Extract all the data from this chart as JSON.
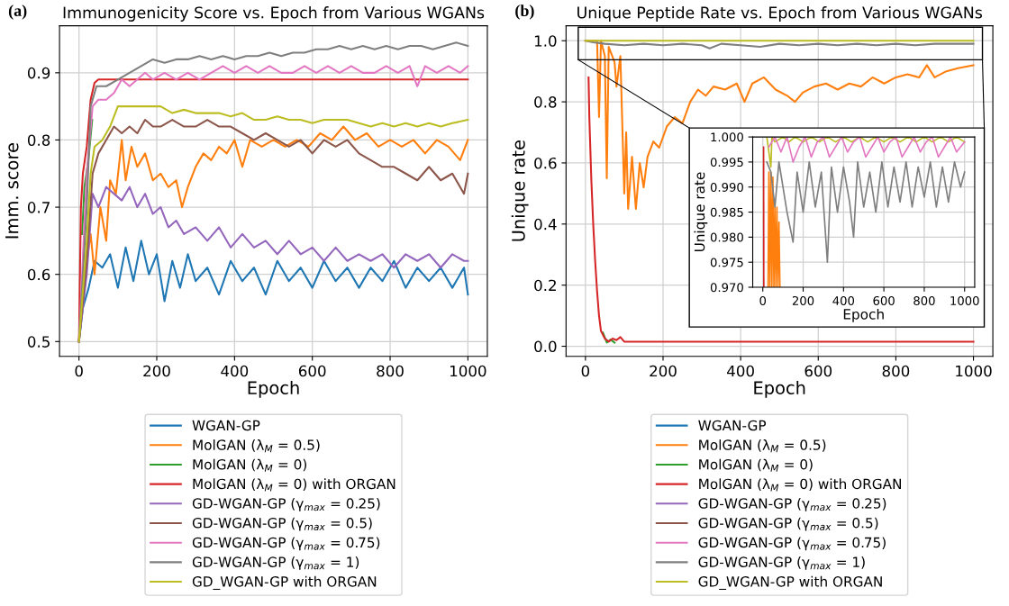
{
  "chart_data": [
    {
      "type": "line",
      "title": "Immunogenicity Score vs. Epoch from Various WGANs",
      "xlabel": "Epoch",
      "ylabel": "Imm. score",
      "annotations": [
        "(a)"
      ],
      "xlim": [
        -50,
        1050
      ],
      "ylim": [
        0.478,
        0.97
      ],
      "xticks": [
        0,
        200,
        400,
        600,
        800,
        1000
      ],
      "yticks": [
        0.5,
        0.6,
        0.7,
        0.8,
        0.9
      ],
      "grid": true,
      "legend": "bottom",
      "marker": "none",
      "line_style": "solid",
      "series": [
        {
          "name": "WGAN-GP",
          "color": "#1f77b4",
          "x": [
            0,
            10,
            25,
            40,
            60,
            80,
            100,
            120,
            140,
            160,
            180,
            200,
            220,
            240,
            260,
            280,
            300,
            330,
            360,
            390,
            420,
            450,
            480,
            510,
            540,
            570,
            600,
            630,
            660,
            690,
            720,
            750,
            780,
            810,
            840,
            870,
            900,
            930,
            960,
            990,
            1000
          ],
          "values": [
            0.5,
            0.55,
            0.58,
            0.62,
            0.61,
            0.63,
            0.58,
            0.64,
            0.59,
            0.65,
            0.6,
            0.63,
            0.56,
            0.62,
            0.58,
            0.63,
            0.59,
            0.61,
            0.57,
            0.62,
            0.59,
            0.61,
            0.57,
            0.62,
            0.59,
            0.61,
            0.58,
            0.62,
            0.59,
            0.61,
            0.58,
            0.61,
            0.59,
            0.62,
            0.58,
            0.61,
            0.59,
            0.61,
            0.58,
            0.61,
            0.57
          ]
        },
        {
          "name": "MolGAN (λ$_{M}$ = 0.5)",
          "color": "#ff7f0e",
          "x": [
            0,
            20,
            30,
            40,
            55,
            70,
            80,
            95,
            110,
            120,
            135,
            150,
            170,
            190,
            210,
            230,
            250,
            265,
            280,
            300,
            320,
            340,
            360,
            380,
            400,
            420,
            440,
            470,
            500,
            530,
            560,
            590,
            620,
            650,
            680,
            710,
            740,
            770,
            800,
            830,
            860,
            890,
            920,
            950,
            980,
            1000
          ],
          "values": [
            0.5,
            0.62,
            0.66,
            0.6,
            0.7,
            0.65,
            0.74,
            0.72,
            0.8,
            0.74,
            0.79,
            0.76,
            0.78,
            0.74,
            0.75,
            0.73,
            0.74,
            0.7,
            0.73,
            0.76,
            0.78,
            0.77,
            0.79,
            0.78,
            0.8,
            0.76,
            0.8,
            0.79,
            0.8,
            0.79,
            0.8,
            0.79,
            0.81,
            0.8,
            0.82,
            0.8,
            0.81,
            0.79,
            0.8,
            0.79,
            0.8,
            0.78,
            0.8,
            0.79,
            0.77,
            0.8
          ]
        },
        {
          "name": "MolGAN (λ$_{M}$ = 0)",
          "color": "#2ca02c",
          "x": [
            8,
            14,
            24,
            34
          ],
          "values": [
            0.66,
            0.73,
            0.77,
            0.83
          ]
        },
        {
          "name": "MolGAN (λ$_{M}$ = 0) with ORGAN",
          "color": "#d62728",
          "x": [
            0,
            5,
            10,
            20,
            30,
            40,
            50,
            200,
            400,
            600,
            800,
            1000
          ],
          "values": [
            0.5,
            0.7,
            0.75,
            0.79,
            0.86,
            0.885,
            0.89,
            0.89,
            0.89,
            0.89,
            0.89,
            0.89
          ]
        },
        {
          "name": "GD-WGAN-GP (γ$_{max}$ = 0.25)",
          "color": "#9467bd",
          "x": [
            0,
            20,
            35,
            50,
            70,
            90,
            110,
            130,
            150,
            170,
            190,
            210,
            230,
            250,
            270,
            300,
            330,
            360,
            390,
            420,
            450,
            480,
            510,
            540,
            570,
            600,
            630,
            660,
            690,
            720,
            750,
            780,
            810,
            840,
            870,
            900,
            930,
            960,
            990,
            1000
          ],
          "values": [
            0.5,
            0.6,
            0.72,
            0.7,
            0.73,
            0.72,
            0.71,
            0.73,
            0.7,
            0.72,
            0.69,
            0.7,
            0.67,
            0.68,
            0.66,
            0.67,
            0.65,
            0.67,
            0.64,
            0.66,
            0.64,
            0.65,
            0.63,
            0.65,
            0.63,
            0.64,
            0.62,
            0.64,
            0.62,
            0.63,
            0.62,
            0.63,
            0.61,
            0.63,
            0.62,
            0.63,
            0.61,
            0.63,
            0.62,
            0.62
          ]
        },
        {
          "name": "GD-WGAN-GP (γ$_{max}$ = 0.5)",
          "color": "#8c564b",
          "x": [
            0,
            20,
            35,
            50,
            70,
            90,
            110,
            130,
            150,
            170,
            190,
            210,
            240,
            270,
            300,
            330,
            360,
            390,
            420,
            450,
            480,
            510,
            540,
            570,
            600,
            630,
            660,
            690,
            720,
            750,
            780,
            810,
            840,
            870,
            900,
            930,
            960,
            990,
            1000
          ],
          "values": [
            0.5,
            0.62,
            0.75,
            0.78,
            0.8,
            0.82,
            0.81,
            0.82,
            0.81,
            0.83,
            0.82,
            0.82,
            0.83,
            0.82,
            0.82,
            0.83,
            0.82,
            0.82,
            0.81,
            0.8,
            0.81,
            0.8,
            0.79,
            0.8,
            0.78,
            0.8,
            0.79,
            0.8,
            0.78,
            0.77,
            0.76,
            0.76,
            0.75,
            0.74,
            0.76,
            0.74,
            0.75,
            0.72,
            0.75
          ]
        },
        {
          "name": "GD-WGAN-GP (γ$_{max}$ = 0.75)",
          "color": "#e377c2",
          "x": [
            0,
            20,
            35,
            50,
            70,
            90,
            110,
            130,
            150,
            170,
            190,
            220,
            250,
            280,
            310,
            340,
            370,
            400,
            430,
            460,
            490,
            520,
            550,
            580,
            610,
            640,
            670,
            700,
            730,
            760,
            790,
            820,
            850,
            870,
            890,
            920,
            950,
            980,
            1000
          ],
          "values": [
            0.5,
            0.75,
            0.85,
            0.86,
            0.86,
            0.87,
            0.89,
            0.88,
            0.89,
            0.9,
            0.89,
            0.9,
            0.89,
            0.9,
            0.89,
            0.9,
            0.91,
            0.9,
            0.91,
            0.9,
            0.91,
            0.9,
            0.9,
            0.91,
            0.9,
            0.91,
            0.9,
            0.91,
            0.9,
            0.9,
            0.91,
            0.9,
            0.91,
            0.88,
            0.91,
            0.9,
            0.91,
            0.9,
            0.91
          ]
        },
        {
          "name": "GD-WGAN-GP (γ$_{max}$ = 1)",
          "color": "#7f7f7f",
          "x": [
            0,
            20,
            30,
            45,
            70,
            100,
            130,
            160,
            190,
            220,
            250,
            280,
            310,
            340,
            370,
            400,
            430,
            460,
            490,
            520,
            550,
            580,
            610,
            640,
            670,
            700,
            730,
            760,
            790,
            820,
            850,
            880,
            910,
            940,
            970,
            1000
          ],
          "values": [
            0.5,
            0.7,
            0.85,
            0.88,
            0.88,
            0.89,
            0.9,
            0.91,
            0.92,
            0.915,
            0.92,
            0.92,
            0.925,
            0.92,
            0.925,
            0.92,
            0.925,
            0.925,
            0.93,
            0.925,
            0.93,
            0.93,
            0.935,
            0.935,
            0.94,
            0.935,
            0.94,
            0.935,
            0.94,
            0.935,
            0.94,
            0.94,
            0.935,
            0.94,
            0.945,
            0.94
          ]
        },
        {
          "name": "GD_WGAN-GP with ORGAN",
          "color": "#bcbd22",
          "x": [
            0,
            20,
            30,
            40,
            60,
            80,
            100,
            120,
            150,
            180,
            210,
            240,
            270,
            300,
            330,
            360,
            390,
            420,
            450,
            480,
            510,
            540,
            570,
            600,
            630,
            660,
            690,
            720,
            750,
            780,
            810,
            840,
            870,
            900,
            930,
            960,
            1000
          ],
          "values": [
            0.5,
            0.65,
            0.75,
            0.79,
            0.8,
            0.82,
            0.85,
            0.85,
            0.85,
            0.85,
            0.85,
            0.84,
            0.845,
            0.84,
            0.84,
            0.84,
            0.835,
            0.84,
            0.83,
            0.83,
            0.835,
            0.83,
            0.83,
            0.825,
            0.83,
            0.83,
            0.83,
            0.825,
            0.82,
            0.825,
            0.82,
            0.825,
            0.82,
            0.825,
            0.82,
            0.825,
            0.83
          ]
        }
      ]
    },
    {
      "type": "line",
      "title": "Unique Peptide Rate vs. Epoch from Various WGANs",
      "xlabel": "Epoch",
      "ylabel": "Unique rate",
      "annotations": [
        "(b)"
      ],
      "xlim": [
        -50,
        1050
      ],
      "ylim": [
        -0.033,
        1.049
      ],
      "xticks": [
        0,
        200,
        400,
        600,
        800,
        1000
      ],
      "yticks": [
        {
          "value": 0,
          "label": "0.0"
        },
        0.2,
        0.4,
        0.6,
        0.8,
        {
          "value": 1,
          "label": "1.0"
        }
      ],
      "grid": true,
      "legend": "bottom",
      "marker": "none",
      "line_style": "solid",
      "series": [
        {
          "name": "WGAN-GP",
          "color": "#1f77b4"
        },
        {
          "name": "MolGAN (λ$_{M}$ = 0.5)",
          "color": "#ff7f0e",
          "x": [
            0,
            30,
            35,
            40,
            50,
            55,
            60,
            75,
            80,
            90,
            100,
            105,
            110,
            120,
            130,
            140,
            150,
            160,
            175,
            190,
            210,
            230,
            250,
            270,
            290,
            310,
            330,
            360,
            390,
            410,
            430,
            460,
            490,
            520,
            540,
            560,
            590,
            620,
            650,
            680,
            710,
            740,
            770,
            800,
            830,
            860,
            880,
            900,
            930,
            960,
            1000
          ],
          "values": [
            1.0,
            1.0,
            0.75,
            1.0,
            0.95,
            0.55,
            0.98,
            0.93,
            0.85,
            0.95,
            0.5,
            0.7,
            0.45,
            0.62,
            0.45,
            0.6,
            0.52,
            0.62,
            0.67,
            0.65,
            0.72,
            0.75,
            0.73,
            0.8,
            0.84,
            0.82,
            0.85,
            0.84,
            0.86,
            0.8,
            0.86,
            0.88,
            0.84,
            0.82,
            0.8,
            0.83,
            0.85,
            0.86,
            0.84,
            0.86,
            0.85,
            0.88,
            0.86,
            0.88,
            0.89,
            0.88,
            0.92,
            0.88,
            0.9,
            0.91,
            0.92
          ]
        },
        {
          "name": "MolGAN (λ$_{M}$ = 0)",
          "color": "#2ca02c",
          "x": [
            45,
            55,
            65,
            75
          ],
          "values": [
            0.045,
            0.012,
            0.022,
            0.012
          ]
        },
        {
          "name": "MolGAN (λ$_{M}$ = 0) with ORGAN",
          "color": "#d62728",
          "x": [
            8,
            10,
            15,
            20,
            25,
            30,
            35,
            40,
            50,
            60,
            70,
            80,
            90,
            100,
            150,
            250,
            500,
            1000
          ],
          "values": [
            0.88,
            0.75,
            0.55,
            0.4,
            0.28,
            0.18,
            0.1,
            0.05,
            0.025,
            0.015,
            0.025,
            0.02,
            0.03,
            0.015,
            0.015,
            0.015,
            0.015,
            0.015
          ]
        },
        {
          "name": "GD-WGAN-GP (γ$_{max}$ = 0.25)",
          "color": "#9467bd"
        },
        {
          "name": "GD-WGAN-GP (γ$_{max}$ = 0.5)",
          "color": "#8c564b"
        },
        {
          "name": "GD-WGAN-GP (γ$_{max}$ = 0.75)",
          "color": "#e377c2"
        },
        {
          "name": "GD-WGAN-GP (γ$_{max}$ = 1)",
          "color": "#7f7f7f",
          "x": [
            0,
            20,
            50,
            100,
            150,
            200,
            250,
            300,
            320,
            350,
            400,
            450,
            500,
            550,
            600,
            650,
            700,
            750,
            800,
            850,
            900,
            950,
            1000
          ],
          "values": [
            1.0,
            0.995,
            0.99,
            0.985,
            0.99,
            0.985,
            0.99,
            0.985,
            0.975,
            0.99,
            0.985,
            0.98,
            0.99,
            0.985,
            0.99,
            0.985,
            0.99,
            0.985,
            0.99,
            0.985,
            0.99,
            0.99,
            0.99
          ]
        },
        {
          "name": "GD_WGAN-GP with ORGAN",
          "color": "#bcbd22",
          "x": [
            0,
            500,
            1000
          ],
          "values": [
            1.0,
            1.0,
            1.0
          ]
        }
      ]
    },
    {
      "type": "line",
      "xlabel": "Epoch",
      "ylabel": "Unique rate",
      "xlim": [
        -50,
        1050
      ],
      "ylim": [
        0.97,
        1.0
      ],
      "xticks": [
        0,
        200,
        400,
        600,
        800,
        1000
      ],
      "yticks": [
        {
          "value": 0.97,
          "label": "0.970"
        },
        {
          "value": 0.975,
          "label": "0.975"
        },
        {
          "value": 0.98,
          "label": "0.980"
        },
        {
          "value": 0.985,
          "label": "0.985"
        },
        {
          "value": 0.99,
          "label": "0.990"
        },
        {
          "value": 0.995,
          "label": "0.995"
        },
        {
          "value": 1.0,
          "label": "1.000"
        }
      ],
      "grid": true,
      "marker": "none",
      "line_style": "solid",
      "series": [
        {
          "color": "#d62728",
          "x": [
            4,
            5
          ],
          "values": [
            0.998,
            0.97
          ]
        },
        {
          "color": "#ff7f0e",
          "x": [
            26,
            30,
            35,
            40,
            45,
            50,
            55,
            60,
            65,
            70,
            75,
            80,
            85
          ],
          "values": [
            0.97,
            0.993,
            0.97,
            0.993,
            0.97,
            0.992,
            0.97,
            0.986,
            0.97,
            0.986,
            0.97,
            0.983,
            0.97
          ]
        },
        {
          "color": "#bcbd22",
          "x": [
            20,
            40,
            45,
            60,
            100,
            130,
            160,
            200,
            240,
            280,
            320,
            360,
            400,
            440,
            480,
            520,
            560,
            600,
            640,
            680,
            720,
            760,
            800,
            840,
            880,
            920,
            960,
            1000
          ],
          "values": [
            1.0,
            0.994,
            1.0,
            0.999,
            1.0,
            0.999,
            1.0,
            0.999,
            1.0,
            0.999,
            1.0,
            0.999,
            1.0,
            0.999,
            1.0,
            0.999,
            1.0,
            0.999,
            1.0,
            0.999,
            1.0,
            0.999,
            1.0,
            0.999,
            1.0,
            0.999,
            1.0,
            0.999
          ]
        },
        {
          "color": "#e377c2",
          "x": [
            30,
            60,
            90,
            120,
            150,
            180,
            210,
            240,
            270,
            300,
            330,
            360,
            390,
            420,
            450,
            480,
            510,
            540,
            570,
            600,
            630,
            660,
            690,
            720,
            750,
            780,
            810,
            840,
            870,
            900,
            930,
            960,
            1000
          ],
          "values": [
            0.998,
            1.0,
            0.997,
            1.0,
            0.995,
            0.998,
            1.0,
            0.996,
            0.999,
            1.0,
            0.996,
            0.998,
            1.0,
            0.997,
            0.999,
            1.0,
            0.996,
            0.998,
            1.0,
            0.997,
            0.999,
            1.0,
            0.996,
            0.998,
            1.0,
            0.997,
            0.999,
            1.0,
            0.996,
            0.998,
            1.0,
            0.997,
            0.999
          ]
        },
        {
          "color": "#7f7f7f",
          "x": [
            20,
            40,
            60,
            80,
            100,
            120,
            150,
            170,
            200,
            230,
            260,
            290,
            320,
            340,
            370,
            400,
            430,
            450,
            470,
            500,
            530,
            560,
            590,
            620,
            650,
            680,
            710,
            740,
            770,
            800,
            830,
            860,
            890,
            920,
            950,
            980,
            1000
          ],
          "values": [
            0.995,
            0.993,
            0.986,
            0.995,
            0.99,
            0.985,
            0.979,
            0.993,
            0.985,
            0.995,
            0.986,
            0.993,
            0.975,
            0.994,
            0.985,
            0.994,
            0.987,
            0.98,
            0.995,
            0.986,
            0.993,
            0.985,
            0.995,
            0.986,
            0.994,
            0.987,
            0.995,
            0.986,
            0.994,
            0.988,
            0.995,
            0.986,
            0.994,
            0.987,
            0.995,
            0.99,
            0.993
          ]
        }
      ]
    }
  ]
}
